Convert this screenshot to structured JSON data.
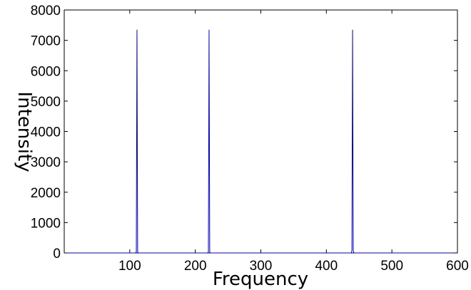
{
  "chart_data": {
    "type": "line",
    "xlabel": "Frequency",
    "ylabel": "Intensity",
    "xlim": [
      0,
      600
    ],
    "ylim": [
      0,
      8000
    ],
    "x_ticks": [
      100,
      200,
      300,
      400,
      500,
      600
    ],
    "y_ticks": [
      0,
      1000,
      2000,
      3000,
      4000,
      5000,
      6000,
      7000,
      8000
    ],
    "grid": false,
    "series": [
      {
        "color": "#0000cc",
        "x": [
          0,
          109,
          110,
          111,
          112,
          113,
          114,
          219,
          220,
          221,
          222,
          223,
          224,
          438,
          439,
          440,
          441,
          442,
          443,
          600
        ],
        "y": [
          0,
          0,
          40,
          7350,
          40,
          0,
          0,
          0,
          40,
          7350,
          40,
          0,
          0,
          0,
          80,
          7350,
          80,
          0,
          0,
          0
        ]
      }
    ]
  }
}
